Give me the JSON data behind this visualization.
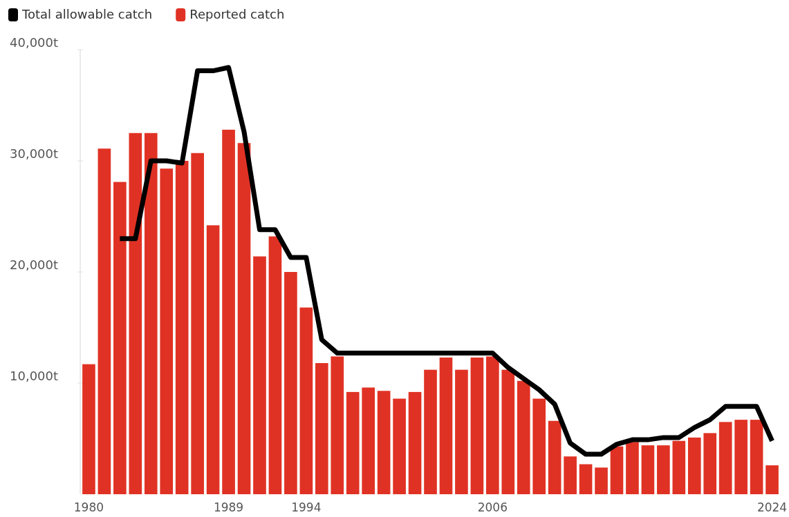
{
  "chart_data": {
    "type": "bar",
    "categories": [
      "1980",
      null,
      null,
      null,
      null,
      null,
      null,
      null,
      null,
      "1989",
      null,
      null,
      null,
      null,
      "1994",
      null,
      null,
      null,
      null,
      null,
      null,
      null,
      null,
      null,
      null,
      null,
      "2006",
      null,
      null,
      null,
      null,
      null,
      null,
      null,
      null,
      null,
      null,
      null,
      null,
      null,
      null,
      null,
      null,
      null,
      "2024"
    ],
    "series": [
      {
        "name": "Total allowable catch",
        "type": "line",
        "color": "#000000",
        "values": [
          null,
          null,
          23000,
          23000,
          30000,
          30000,
          29800,
          38100,
          38100,
          38400,
          32600,
          23800,
          23800,
          21300,
          21300,
          13900,
          12700,
          12700,
          12700,
          12700,
          12700,
          12700,
          12700,
          12700,
          12700,
          12700,
          12700,
          11400,
          10400,
          9400,
          8100,
          4600,
          3600,
          3600,
          4500,
          4900,
          4900,
          5100,
          5100,
          6000,
          6700,
          7900,
          7900,
          7900,
          4800
        ]
      },
      {
        "name": "Reported catch",
        "color": "#e03224",
        "values": [
          11700,
          31100,
          28100,
          32500,
          32500,
          29300,
          30000,
          30700,
          24200,
          32800,
          31600,
          21400,
          23200,
          20000,
          16800,
          11800,
          12400,
          9200,
          9600,
          9300,
          8600,
          9200,
          11200,
          12300,
          11200,
          12300,
          12400,
          11200,
          10200,
          8600,
          6600,
          3400,
          2700,
          2400,
          4300,
          4700,
          4400,
          4400,
          4800,
          5100,
          5500,
          6500,
          6700,
          6700,
          2600
        ]
      }
    ],
    "ylim": [
      0,
      40000
    ],
    "yticks": [
      {
        "value": 10000,
        "label": "10,000t"
      },
      {
        "value": 20000,
        "label": "20,000t"
      },
      {
        "value": 30000,
        "label": "30,000t"
      },
      {
        "value": 40000,
        "label": "40,000t"
      }
    ],
    "legend": "top left"
  }
}
